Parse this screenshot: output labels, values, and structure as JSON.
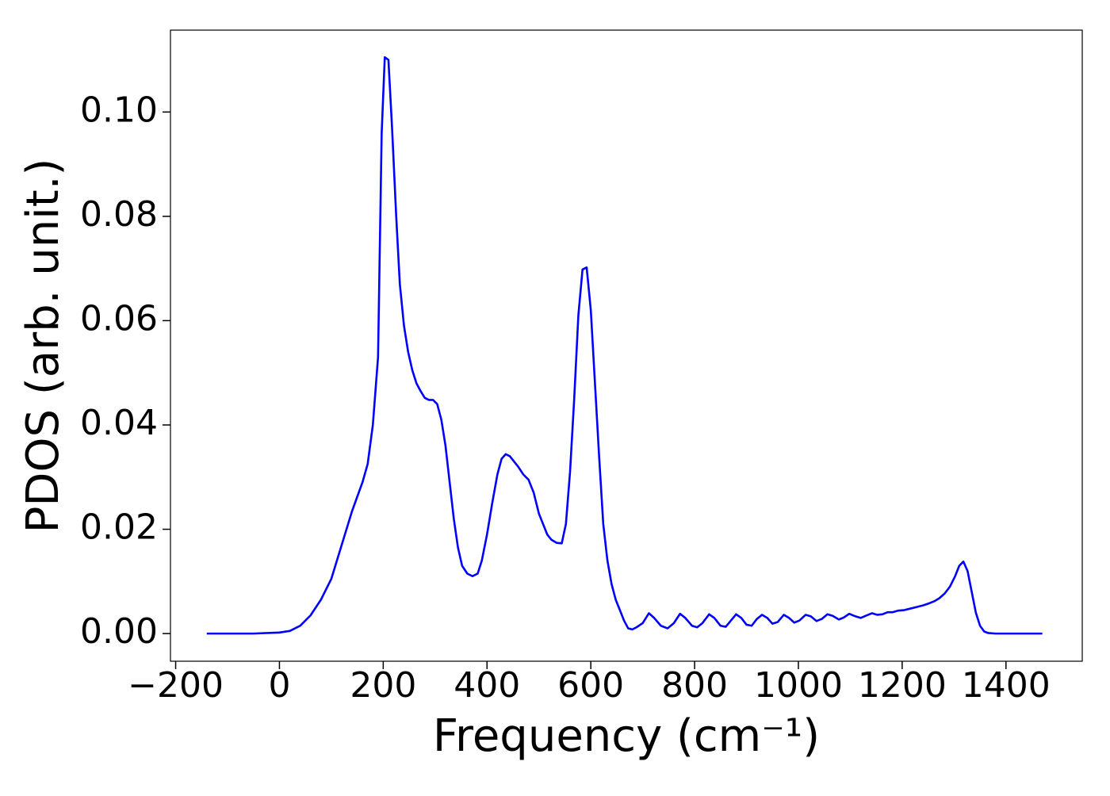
{
  "chart_data": {
    "type": "line",
    "xlabel": "Frequency (cm⁻¹)",
    "ylabel": "PDOS (arb. unit.)",
    "xlim": [
      -210,
      1547
    ],
    "ylim": [
      -0.0053,
      0.1157
    ],
    "xticks": [
      {
        "value": -200,
        "label": "−200"
      },
      0,
      200,
      400,
      600,
      800,
      1000,
      1200,
      1400
    ],
    "yticks": [
      {
        "value": 0,
        "label": "0.00"
      },
      {
        "value": 0.02,
        "label": "0.02"
      },
      {
        "value": 0.04,
        "label": "0.04"
      },
      {
        "value": 0.06,
        "label": "0.06"
      },
      {
        "value": 0.08,
        "label": "0.08"
      },
      {
        "value": 0.1,
        "label": "0.10"
      }
    ],
    "grid": false,
    "series": [
      {
        "color": "#0000ff",
        "x": [
          -140,
          -50,
          0,
          20,
          40,
          60,
          80,
          100,
          120,
          140,
          160,
          170,
          180,
          190,
          197,
          203,
          210,
          217,
          225,
          232,
          240,
          248,
          256,
          264,
          272,
          280,
          288,
          296,
          304,
          312,
          320,
          328,
          336,
          344,
          352,
          362,
          372,
          382,
          390,
          400,
          410,
          420,
          428,
          436,
          444,
          452,
          460,
          470,
          480,
          490,
          500,
          508,
          516,
          524,
          534,
          544,
          552,
          560,
          568,
          576,
          584,
          592,
          600,
          608,
          616,
          624,
          632,
          640,
          648,
          656,
          664,
          672,
          680,
          688,
          700,
          712,
          722,
          735,
          748,
          760,
          772,
          782,
          795,
          805,
          815,
          828,
          838,
          850,
          860,
          870,
          880,
          890,
          900,
          910,
          920,
          930,
          940,
          950,
          960,
          972,
          982,
          992,
          1002,
          1014,
          1024,
          1035,
          1045,
          1056,
          1066,
          1078,
          1088,
          1098,
          1110,
          1120,
          1132,
          1142,
          1152,
          1162,
          1172,
          1182,
          1192,
          1204,
          1216,
          1228,
          1240,
          1252,
          1262,
          1272,
          1282,
          1292,
          1302,
          1310,
          1318,
          1326,
          1334,
          1342,
          1350,
          1358,
          1366,
          1380,
          1470
        ],
        "values": [
          0,
          0,
          0.0002,
          0.0005,
          0.0015,
          0.0035,
          0.0065,
          0.0105,
          0.017,
          0.0235,
          0.029,
          0.0325,
          0.04,
          0.053,
          0.096,
          0.1105,
          0.11,
          0.097,
          0.08,
          0.067,
          0.059,
          0.054,
          0.0505,
          0.048,
          0.0465,
          0.0452,
          0.0448,
          0.0448,
          0.044,
          0.041,
          0.036,
          0.029,
          0.022,
          0.0165,
          0.013,
          0.0115,
          0.011,
          0.0115,
          0.014,
          0.019,
          0.025,
          0.0305,
          0.0335,
          0.0344,
          0.034,
          0.033,
          0.032,
          0.0305,
          0.0295,
          0.027,
          0.023,
          0.021,
          0.019,
          0.018,
          0.0174,
          0.0173,
          0.021,
          0.031,
          0.045,
          0.061,
          0.0698,
          0.0702,
          0.062,
          0.048,
          0.034,
          0.021,
          0.014,
          0.0095,
          0.0065,
          0.0045,
          0.0025,
          0.001,
          0.0008,
          0.0012,
          0.002,
          0.0039,
          0.003,
          0.0015,
          0.001,
          0.002,
          0.0038,
          0.003,
          0.0015,
          0.0012,
          0.002,
          0.0037,
          0.003,
          0.0015,
          0.0013,
          0.0025,
          0.0037,
          0.003,
          0.0017,
          0.0015,
          0.0028,
          0.0036,
          0.003,
          0.0019,
          0.0022,
          0.0036,
          0.003,
          0.0021,
          0.0025,
          0.0036,
          0.0033,
          0.0024,
          0.0028,
          0.0037,
          0.0034,
          0.0027,
          0.0031,
          0.0038,
          0.0033,
          0.003,
          0.0035,
          0.0039,
          0.0036,
          0.0037,
          0.0041,
          0.0041,
          0.0044,
          0.0045,
          0.0048,
          0.0051,
          0.0054,
          0.0058,
          0.0062,
          0.0068,
          0.0077,
          0.009,
          0.011,
          0.013,
          0.0138,
          0.012,
          0.008,
          0.004,
          0.0015,
          0.0004,
          0.0001,
          0,
          0
        ]
      }
    ]
  }
}
